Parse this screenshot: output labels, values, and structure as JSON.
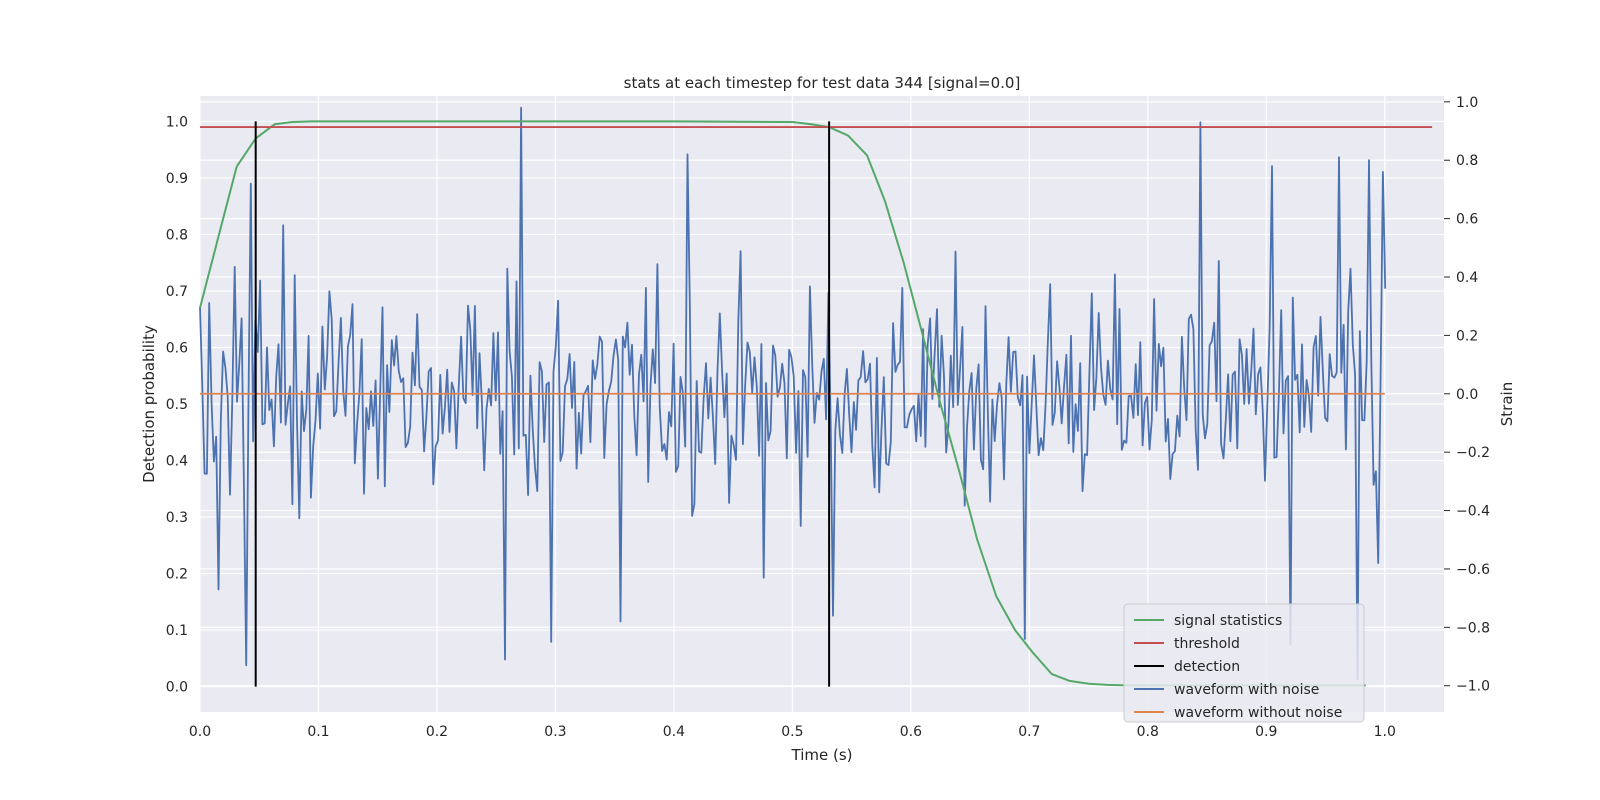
{
  "chart_data": {
    "type": "line",
    "title": "stats at each timestep for test data 344 [signal=0.0]",
    "xlabel": "Time (s)",
    "ylabel": "Detection probability",
    "y2label": "Strain",
    "xlim": [
      0.0,
      1.05
    ],
    "ylim": [
      -0.045,
      1.045
    ],
    "y2lim": [
      -1.09,
      1.02
    ],
    "xticks": [
      "0.0",
      "0.1",
      "0.2",
      "0.3",
      "0.4",
      "0.5",
      "0.6",
      "0.7",
      "0.8",
      "0.9",
      "1.0"
    ],
    "yticks": [
      "0.0",
      "0.1",
      "0.2",
      "0.3",
      "0.4",
      "0.5",
      "0.6",
      "0.7",
      "0.8",
      "0.9",
      "1.0"
    ],
    "y2ticks": [
      "−1.0",
      "−0.8",
      "−0.6",
      "−0.4",
      "−0.2",
      "0.0",
      "0.2",
      "0.4",
      "0.6",
      "0.8",
      "1.0"
    ],
    "grid": true,
    "legend_position": "lower-right",
    "colors": {
      "signal": "#55a868",
      "threshold": "#c44e52",
      "detection": "#000000",
      "noise": "#4c72b0",
      "clean": "#dd8452",
      "background": "#eaeaf2",
      "grid": "#ffffff"
    },
    "series": [
      {
        "name": "signal statistics",
        "axis": "left",
        "x": [
          0.0,
          0.016,
          0.031,
          0.047,
          0.063,
          0.078,
          0.094,
          0.109,
          0.125,
          0.2,
          0.3,
          0.4,
          0.5,
          0.516,
          0.531,
          0.547,
          0.563,
          0.578,
          0.594,
          0.609,
          0.625,
          0.641,
          0.656,
          0.672,
          0.688,
          0.703,
          0.719,
          0.734,
          0.75,
          0.766,
          0.781,
          0.8,
          0.9,
          0.984
        ],
        "y": [
          0.67,
          0.8,
          0.92,
          0.97,
          0.995,
          0.999,
          1.0,
          1.0,
          1.0,
          1.0,
          1.0,
          1.0,
          0.999,
          0.995,
          0.99,
          0.975,
          0.94,
          0.86,
          0.75,
          0.63,
          0.5,
          0.38,
          0.26,
          0.16,
          0.1,
          0.06,
          0.022,
          0.01,
          0.005,
          0.003,
          0.002,
          0.002,
          0.002,
          0.002
        ]
      },
      {
        "name": "threshold",
        "axis": "left",
        "x": [
          0.0,
          1.04
        ],
        "y": [
          0.99,
          0.99
        ]
      },
      {
        "name": "detection",
        "axis": "left",
        "x": [
          0.047,
          0.531
        ],
        "y": [
          0.0,
          1.0
        ]
      },
      {
        "name": "waveform with noise",
        "axis": "right",
        "x_range": [
          0.0,
          1.0
        ],
        "x_step": 0.00195,
        "amplitude": 0.3,
        "spikes": [
          {
            "x": 0.039,
            "y": -0.93
          },
          {
            "x": 0.043,
            "y": 0.72
          },
          {
            "x": 0.016,
            "y": -0.67
          },
          {
            "x": 0.258,
            "y": -0.91
          },
          {
            "x": 0.271,
            "y": 0.98
          },
          {
            "x": 0.297,
            "y": -0.85
          },
          {
            "x": 0.354,
            "y": -0.78
          },
          {
            "x": 0.411,
            "y": 0.82
          },
          {
            "x": 0.475,
            "y": -0.63
          },
          {
            "x": 0.535,
            "y": -0.76
          },
          {
            "x": 0.697,
            "y": -0.84
          },
          {
            "x": 0.844,
            "y": 0.93
          },
          {
            "x": 0.905,
            "y": 0.78
          },
          {
            "x": 0.92,
            "y": -0.86
          },
          {
            "x": 0.962,
            "y": 0.81
          },
          {
            "x": 0.976,
            "y": -0.98
          },
          {
            "x": 0.986,
            "y": 0.8
          },
          {
            "x": 0.995,
            "y": -0.58
          },
          {
            "x": 0.998,
            "y": 0.76
          }
        ]
      },
      {
        "name": "waveform without noise",
        "axis": "right",
        "x": [
          0.0,
          1.0
        ],
        "y": [
          0.0,
          0.0
        ]
      }
    ]
  }
}
